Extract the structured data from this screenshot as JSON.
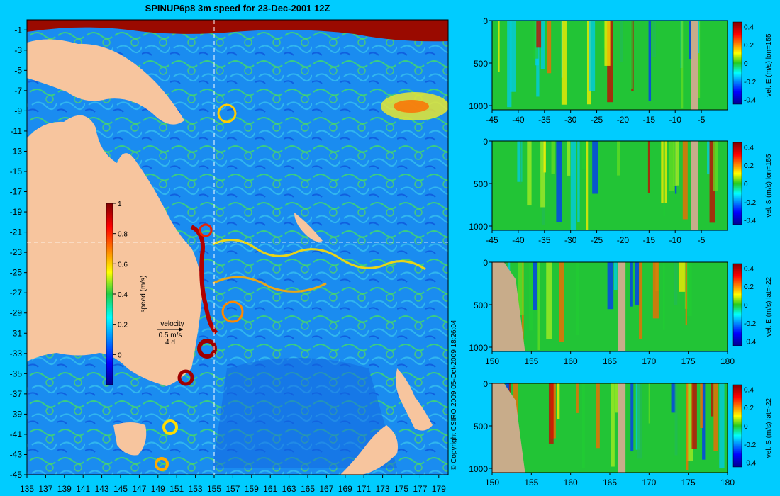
{
  "colors": {
    "background": "#00ccff",
    "land": "#f7c59e",
    "section_land": "#c8ac8a",
    "ocean_base": "#1a8cf0"
  },
  "chart_data": [
    {
      "type": "heatmap",
      "id": "main-map",
      "title": "SPINUP6p8 3m speed for 23-Dec-2001 12Z",
      "x_ticks": [
        "135",
        "137",
        "139",
        "141",
        "143",
        "145",
        "147",
        "149",
        "151",
        "153",
        "155",
        "157",
        "159",
        "161",
        "163",
        "165",
        "167",
        "169",
        "171",
        "173",
        "175",
        "177",
        "179"
      ],
      "y_ticks": [
        "-1",
        "-3",
        "-5",
        "-7",
        "-9",
        "-11",
        "-13",
        "-15",
        "-17",
        "-19",
        "-21",
        "-23",
        "-25",
        "-27",
        "-29",
        "-31",
        "-33",
        "-35",
        "-37",
        "-39",
        "-41",
        "-43",
        "-45"
      ],
      "xlim": [
        135,
        180
      ],
      "ylim": [
        -45,
        0
      ],
      "crosshair": {
        "lon": 155,
        "lat": -22
      },
      "colorbar": {
        "label": "speed (m/s)",
        "ticks": [
          "1",
          "0.8",
          "0.6",
          "0.4",
          "0.2",
          "0"
        ],
        "range": [
          -0.2,
          1
        ]
      },
      "legend": {
        "title": "velocity",
        "speed": "0.5 m/s",
        "days": "4 d"
      },
      "copyright": "© Copyright CSIRO 2009   05-Oct-2009 18:26:04"
    },
    {
      "type": "heatmap",
      "id": "section-1",
      "x_ticks": [
        "-45",
        "-40",
        "-35",
        "-30",
        "-25",
        "-20",
        "-15",
        "-10",
        "-5"
      ],
      "xlim": [
        -45,
        0
      ],
      "y_ticks": [
        "0",
        "500",
        "1000"
      ],
      "ylim": [
        1050,
        0
      ],
      "colorbar": {
        "label": "vel. E (m/s) lon=155",
        "ticks": [
          "0.4",
          "0.2",
          "0",
          "-0.2",
          "-0.4"
        ]
      }
    },
    {
      "type": "heatmap",
      "id": "section-2",
      "x_ticks": [
        "-45",
        "-40",
        "-35",
        "-30",
        "-25",
        "-20",
        "-15",
        "-10",
        "-5"
      ],
      "xlim": [
        -45,
        0
      ],
      "y_ticks": [
        "0",
        "500",
        "1000"
      ],
      "ylim": [
        1050,
        0
      ],
      "colorbar": {
        "label": "vel. S (m/s) lon=155",
        "ticks": [
          "0.4",
          "0.2",
          "0",
          "-0.2",
          "-0.4"
        ]
      }
    },
    {
      "type": "heatmap",
      "id": "section-3",
      "x_ticks": [
        "150",
        "155",
        "160",
        "165",
        "170",
        "175",
        "180"
      ],
      "xlim": [
        150,
        180
      ],
      "y_ticks": [
        "0",
        "500",
        "1000"
      ],
      "ylim": [
        1050,
        0
      ],
      "colorbar": {
        "label": "vel. E (m/s) lat=-22",
        "ticks": [
          "0.4",
          "0.2",
          "0",
          "-0.2",
          "-0.4"
        ]
      }
    },
    {
      "type": "heatmap",
      "id": "section-4",
      "x_ticks": [
        "150",
        "155",
        "160",
        "165",
        "170",
        "175",
        "180"
      ],
      "xlim": [
        150,
        180
      ],
      "y_ticks": [
        "0",
        "500",
        "1000"
      ],
      "ylim": [
        1050,
        0
      ],
      "colorbar": {
        "label": "vel. S (m/s) lat=-22",
        "ticks": [
          "0.4",
          "0.2",
          "0",
          "-0.2",
          "-0.4"
        ]
      }
    }
  ]
}
